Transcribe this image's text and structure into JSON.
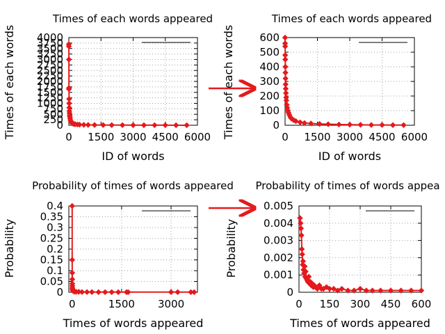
{
  "colors": {
    "series": "#e41a1c",
    "grid": "#a0a0a0",
    "axis": "#000000",
    "arrow": "#e41a1c"
  },
  "chart_data": [
    {
      "type": "line",
      "title": "Times of each words appeared",
      "xlabel": "ID of words",
      "ylabel": "Times of each words",
      "xlim": [
        0,
        6000
      ],
      "ylim": [
        0,
        4000
      ],
      "xticks": [
        0,
        1500,
        3000,
        4500,
        6000
      ],
      "yticks": [
        0,
        250,
        500,
        750,
        1000,
        1250,
        1500,
        1750,
        2000,
        2250,
        2500,
        2750,
        3000,
        3250,
        3500,
        3750,
        4000
      ],
      "grid": true,
      "legend": "top-right",
      "x": [
        0,
        2,
        4,
        6,
        8,
        12,
        16,
        20,
        25,
        30,
        40,
        50,
        60,
        80,
        100,
        130,
        160,
        200,
        250,
        300,
        400,
        500,
        700,
        900,
        1200,
        1600,
        2000,
        2500,
        3000,
        3500,
        4000,
        4500,
        5000,
        5500
      ],
      "y": [
        3700,
        3600,
        3000,
        1700,
        1650,
        1200,
        1000,
        800,
        650,
        550,
        450,
        380,
        300,
        220,
        170,
        120,
        90,
        70,
        55,
        45,
        35,
        28,
        20,
        15,
        12,
        9,
        7,
        5,
        4,
        3,
        2,
        2,
        1,
        1
      ]
    },
    {
      "type": "line",
      "title": "Times of each words appeared",
      "xlabel": "ID of words",
      "ylabel": "Times of each words",
      "xlim": [
        0,
        6000
      ],
      "ylim": [
        0,
        600
      ],
      "xticks": [
        0,
        1500,
        3000,
        4500,
        6000
      ],
      "yticks": [
        0,
        100,
        200,
        300,
        400,
        500,
        600
      ],
      "grid": true,
      "legend": "top-right",
      "x": [
        0,
        2,
        4,
        6,
        8,
        12,
        16,
        20,
        25,
        30,
        40,
        50,
        60,
        80,
        100,
        130,
        160,
        200,
        250,
        300,
        400,
        500,
        700,
        900,
        1200,
        1600,
        2000,
        2500,
        3000,
        3500,
        4000,
        4500,
        5000,
        5500
      ],
      "y": [
        600,
        560,
        540,
        480,
        450,
        400,
        360,
        320,
        280,
        250,
        220,
        190,
        170,
        140,
        120,
        100,
        85,
        70,
        55,
        45,
        35,
        28,
        20,
        15,
        12,
        9,
        7,
        5,
        4,
        3,
        2,
        2,
        1,
        1
      ]
    },
    {
      "type": "line",
      "title": "Probability of times of words appeared",
      "xlabel": "Times of words appeared",
      "ylabel": "Probability",
      "xlim": [
        -100,
        3800
      ],
      "ylim": [
        0,
        0.4
      ],
      "xticks": [
        0,
        1500,
        3000
      ],
      "xtick_labels": [
        "0",
        "1500",
        "3000"
      ],
      "yticks": [
        0,
        0.05,
        0.1,
        0.15,
        0.2,
        0.25,
        0.3,
        0.35,
        0.4
      ],
      "ytick_labels": [
        "0",
        "0.05",
        "0.1",
        "0.15",
        "0.2",
        "0.25",
        "0.3",
        "0.35",
        "0.4"
      ],
      "grid": true,
      "legend": "top-right",
      "x": [
        1,
        2,
        3,
        4,
        5,
        6,
        8,
        10,
        15,
        20,
        30,
        50,
        80,
        120,
        200,
        300,
        450,
        600,
        800,
        1000,
        1200,
        1400,
        1650,
        1700,
        3000,
        3200,
        3600,
        3700
      ],
      "y": [
        0.4,
        0.15,
        0.09,
        0.06,
        0.04,
        0.03,
        0.02,
        0.015,
        0.01,
        0.008,
        0.006,
        0.004,
        0.003,
        0.002,
        0.002,
        0.001,
        0.001,
        0.001,
        0.0005,
        0.0005,
        0.0005,
        0.0005,
        0.0005,
        0.0005,
        0.0005,
        0.0005,
        0.0005,
        0.0005
      ]
    },
    {
      "type": "line",
      "title": "Probability of times of words appea",
      "xlabel": "Times of words appeared",
      "ylabel": "Probability",
      "xlim": [
        0,
        600
      ],
      "ylim": [
        0,
        0.005
      ],
      "xticks": [
        0,
        150,
        300,
        450,
        600
      ],
      "yticks": [
        0,
        0.001,
        0.002,
        0.003,
        0.004,
        0.005
      ],
      "ytick_labels": [
        "0",
        "0.001",
        "0.002",
        "0.003",
        "0.004",
        "0.005"
      ],
      "grid": true,
      "legend": "top-right",
      "x": [
        5,
        8,
        10,
        12,
        14,
        16,
        18,
        20,
        22,
        25,
        28,
        30,
        33,
        36,
        40,
        44,
        48,
        52,
        56,
        60,
        65,
        70,
        75,
        80,
        90,
        100,
        110,
        120,
        135,
        150,
        170,
        190,
        210,
        240,
        270,
        300,
        330,
        360,
        400,
        450,
        500,
        550,
        600
      ],
      "y": [
        0.0043,
        0.004,
        0.0037,
        0.0033,
        0.0025,
        0.0022,
        0.0016,
        0.0018,
        0.0013,
        0.0011,
        0.0015,
        0.0009,
        0.0012,
        0.0008,
        0.0007,
        0.0006,
        0.0009,
        0.0005,
        0.0006,
        0.0004,
        0.0005,
        0.0003,
        0.0004,
        0.0003,
        0.0002,
        0.0004,
        0.0002,
        0.0002,
        0.0003,
        0.0002,
        0.0002,
        0.0001,
        0.0002,
        0.0001,
        0.0001,
        0.0002,
        0.0001,
        0.0001,
        0.0001,
        0.0001,
        0.0001,
        0.0001,
        0.0001
      ]
    }
  ]
}
